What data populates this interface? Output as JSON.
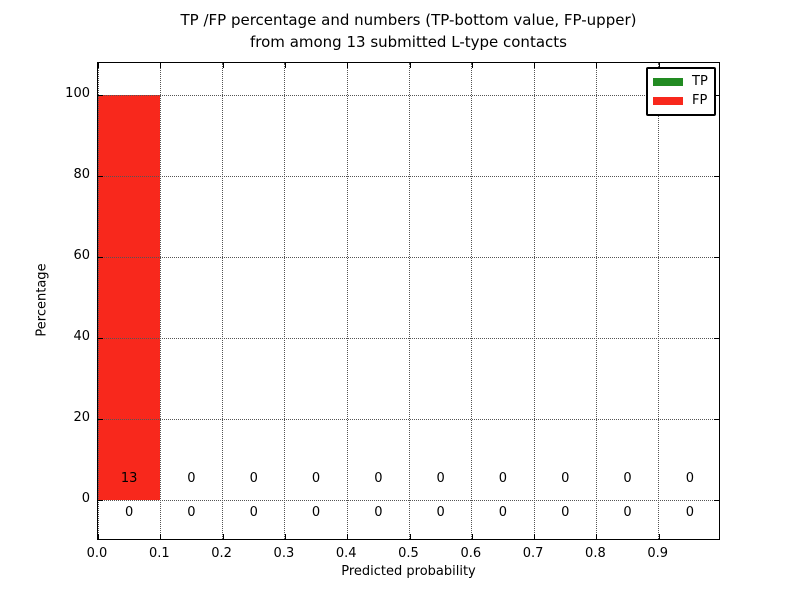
{
  "chart_data": {
    "type": "bar",
    "title_line1": "TP /FP percentage and numbers (TP-bottom value, FP-upper)",
    "title_line2": "from among 13 submitted L-type contacts",
    "xlabel": "Predicted probability",
    "ylabel": "Percentage",
    "x_tick_labels": [
      "0.0",
      "0.1",
      "0.2",
      "0.3",
      "0.4",
      "0.5",
      "0.6",
      "0.7",
      "0.8",
      "0.9"
    ],
    "x_tick_values": [
      0,
      0.1,
      0.2,
      0.3,
      0.4,
      0.5,
      0.6,
      0.7,
      0.8,
      0.9
    ],
    "y_tick_labels": [
      "0",
      "20",
      "40",
      "60",
      "80",
      "100"
    ],
    "y_tick_values": [
      0,
      20,
      40,
      60,
      80,
      100
    ],
    "xlim": [
      0,
      1
    ],
    "ylim": [
      -10,
      108
    ],
    "grid": true,
    "legend_position": "upper right",
    "bin_edges": [
      0,
      0.1,
      0.2,
      0.3,
      0.4,
      0.5,
      0.6,
      0.7,
      0.8,
      0.9,
      1.0
    ],
    "series": [
      {
        "name": "TP",
        "color": "#228b22",
        "percent": [
          0,
          0,
          0,
          0,
          0,
          0,
          0,
          0,
          0,
          0
        ],
        "counts": [
          0,
          0,
          0,
          0,
          0,
          0,
          0,
          0,
          0,
          0
        ]
      },
      {
        "name": "FP",
        "color": "#f8281c",
        "percent": [
          100,
          0,
          0,
          0,
          0,
          0,
          0,
          0,
          0,
          0
        ],
        "counts": [
          13,
          0,
          0,
          0,
          0,
          0,
          0,
          0,
          0,
          0
        ]
      }
    ],
    "count_rows": {
      "upper_series": "FP",
      "lower_series": "TP"
    }
  }
}
